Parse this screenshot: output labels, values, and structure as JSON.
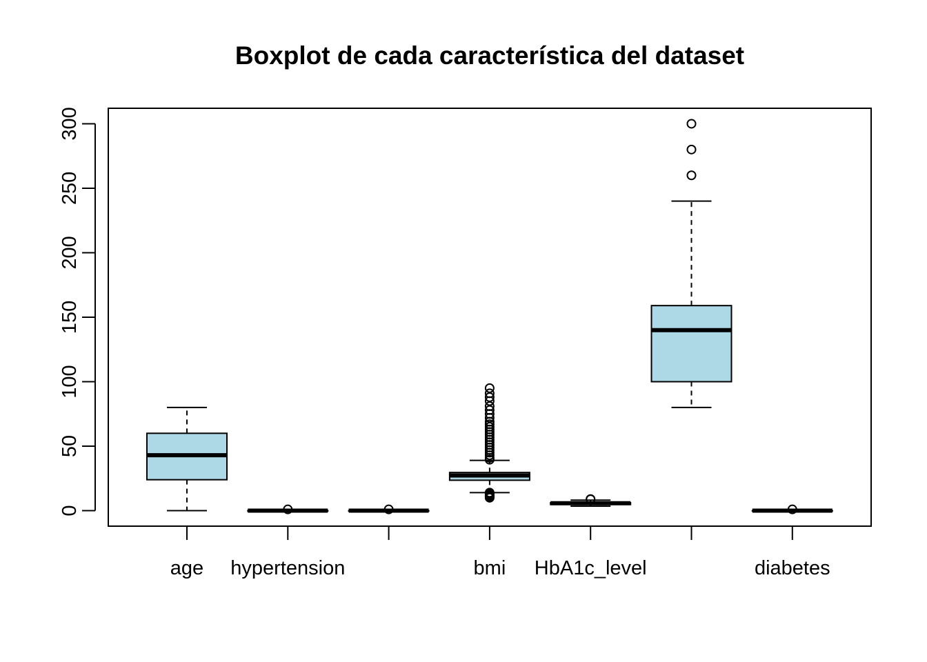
{
  "chart_data": {
    "type": "boxplot",
    "title": "Boxplot de cada característica del dataset",
    "xlabel": "",
    "ylabel": "",
    "ylim": [
      -12,
      312
    ],
    "yticks": [
      0,
      50,
      100,
      150,
      200,
      250,
      300
    ],
    "grid": false,
    "legend": "none",
    "box_fill": "#add8e6",
    "categories": [
      "age",
      "hypertension",
      "",
      "bmi",
      "HbA1c_level",
      "",
      "diabetes"
    ],
    "boxes": [
      {
        "label": "age",
        "whisker_low": 0,
        "q1": 24,
        "median": 43,
        "q3": 60,
        "whisker_high": 80,
        "outliers": []
      },
      {
        "label": "hypertension",
        "whisker_low": 0,
        "q1": 0,
        "median": 0,
        "q3": 0,
        "whisker_high": 0,
        "outliers": [
          1
        ]
      },
      {
        "label": "",
        "whisker_low": 0,
        "q1": 0,
        "median": 0,
        "q3": 0,
        "whisker_high": 0,
        "outliers": [
          1
        ]
      },
      {
        "label": "bmi",
        "whisker_low": 14,
        "q1": 23.6,
        "median": 27.3,
        "q3": 29.6,
        "whisker_high": 39,
        "outliers": [
          10,
          10.5,
          11,
          11.5,
          12,
          12.5,
          13,
          13.5,
          14,
          39.5,
          41,
          43,
          45,
          47,
          49,
          51,
          53,
          55,
          57,
          59,
          61,
          63,
          65,
          67,
          69,
          72,
          75,
          78,
          81,
          85,
          88,
          91,
          95
        ]
      },
      {
        "label": "HbA1c_level",
        "whisker_low": 3.5,
        "q1": 4.8,
        "median": 5.8,
        "q3": 6.2,
        "whisker_high": 8.2,
        "outliers": [
          8.8,
          9
        ]
      },
      {
        "label": "",
        "whisker_low": 80,
        "q1": 100,
        "median": 140,
        "q3": 159,
        "whisker_high": 240,
        "outliers": [
          260,
          280,
          300
        ]
      },
      {
        "label": "diabetes",
        "whisker_low": 0,
        "q1": 0,
        "median": 0,
        "q3": 0,
        "whisker_high": 0,
        "outliers": [
          1
        ]
      }
    ]
  }
}
